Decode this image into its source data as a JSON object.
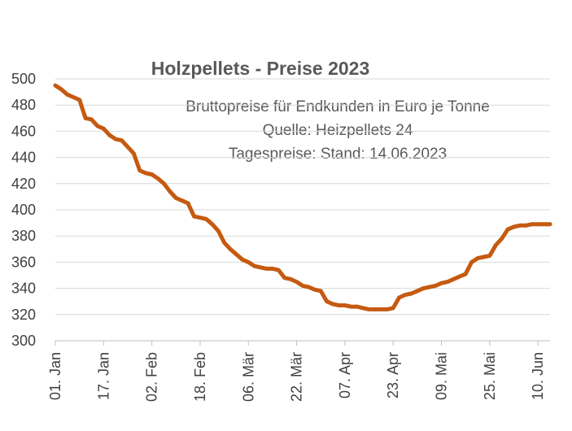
{
  "chart_data": {
    "type": "line",
    "title": "Holzpellets - Preise 2023",
    "subtitle_lines": [
      "Bruttopreise für Endkunden in Euro je Tonne",
      "Quelle: Heizpellets 24",
      "Tagespreise: Stand: 14.06.2023"
    ],
    "xlabel": "",
    "ylabel": "",
    "ylim": [
      300,
      500
    ],
    "yticks": [
      300,
      320,
      340,
      360,
      380,
      400,
      420,
      440,
      460,
      480,
      500
    ],
    "x_tick_labels": [
      "01. Jan",
      "17. Jan",
      "02. Feb",
      "18. Feb",
      "06. Mär",
      "22. Mär",
      "07. Apr",
      "23. Apr",
      "09. Mai",
      "25. Mai",
      "10. Jun"
    ],
    "x_tick_dates": [
      "2023-01-01",
      "2023-01-17",
      "2023-02-02",
      "2023-02-18",
      "2023-03-06",
      "2023-03-22",
      "2023-04-07",
      "2023-04-23",
      "2023-05-09",
      "2023-05-25",
      "2023-06-10"
    ],
    "xlim": [
      "2023-01-01",
      "2023-06-14"
    ],
    "grid": true,
    "line_color": "#c55a11",
    "series": [
      {
        "x": [
          "2023-01-01",
          "2023-01-03",
          "2023-01-05",
          "2023-01-07",
          "2023-01-09",
          "2023-01-11",
          "2023-01-13",
          "2023-01-15",
          "2023-01-17",
          "2023-01-19",
          "2023-01-21",
          "2023-01-23",
          "2023-01-25",
          "2023-01-27",
          "2023-01-29",
          "2023-01-31",
          "2023-02-02",
          "2023-02-04",
          "2023-02-06",
          "2023-02-08",
          "2023-02-10",
          "2023-02-12",
          "2023-02-14",
          "2023-02-16",
          "2023-02-18",
          "2023-02-20",
          "2023-02-22",
          "2023-02-24",
          "2023-02-26",
          "2023-02-28",
          "2023-03-02",
          "2023-03-04",
          "2023-03-06",
          "2023-03-08",
          "2023-03-10",
          "2023-03-12",
          "2023-03-14",
          "2023-03-16",
          "2023-03-18",
          "2023-03-20",
          "2023-03-22",
          "2023-03-24",
          "2023-03-26",
          "2023-03-28",
          "2023-03-30",
          "2023-04-01",
          "2023-04-03",
          "2023-04-05",
          "2023-04-07",
          "2023-04-09",
          "2023-04-11",
          "2023-04-13",
          "2023-04-15",
          "2023-04-17",
          "2023-04-19",
          "2023-04-21",
          "2023-04-23",
          "2023-04-25",
          "2023-04-27",
          "2023-04-29",
          "2023-05-01",
          "2023-05-03",
          "2023-05-05",
          "2023-05-07",
          "2023-05-09",
          "2023-05-11",
          "2023-05-13",
          "2023-05-15",
          "2023-05-17",
          "2023-05-19",
          "2023-05-21",
          "2023-05-23",
          "2023-05-25",
          "2023-05-27",
          "2023-05-29",
          "2023-05-31",
          "2023-06-02",
          "2023-06-04",
          "2023-06-06",
          "2023-06-08",
          "2023-06-10",
          "2023-06-12",
          "2023-06-14"
        ],
        "values": [
          495,
          492,
          488,
          486,
          484,
          470,
          469,
          464,
          462,
          457,
          454,
          453,
          448,
          443,
          430,
          428,
          427,
          424,
          420,
          414,
          409,
          407,
          405,
          395,
          394,
          393,
          389,
          384,
          375,
          370,
          366,
          362,
          360,
          357,
          356,
          355,
          355,
          354,
          348,
          347,
          345,
          342,
          341,
          339,
          338,
          330,
          328,
          327,
          327,
          326,
          326,
          325,
          324,
          324,
          324,
          324,
          325,
          333,
          335,
          336,
          338,
          340,
          341,
          342,
          344,
          345,
          347,
          349,
          351,
          360,
          363,
          364,
          365,
          373,
          378,
          385,
          387,
          388,
          388,
          389,
          389,
          389,
          389
        ]
      }
    ]
  }
}
